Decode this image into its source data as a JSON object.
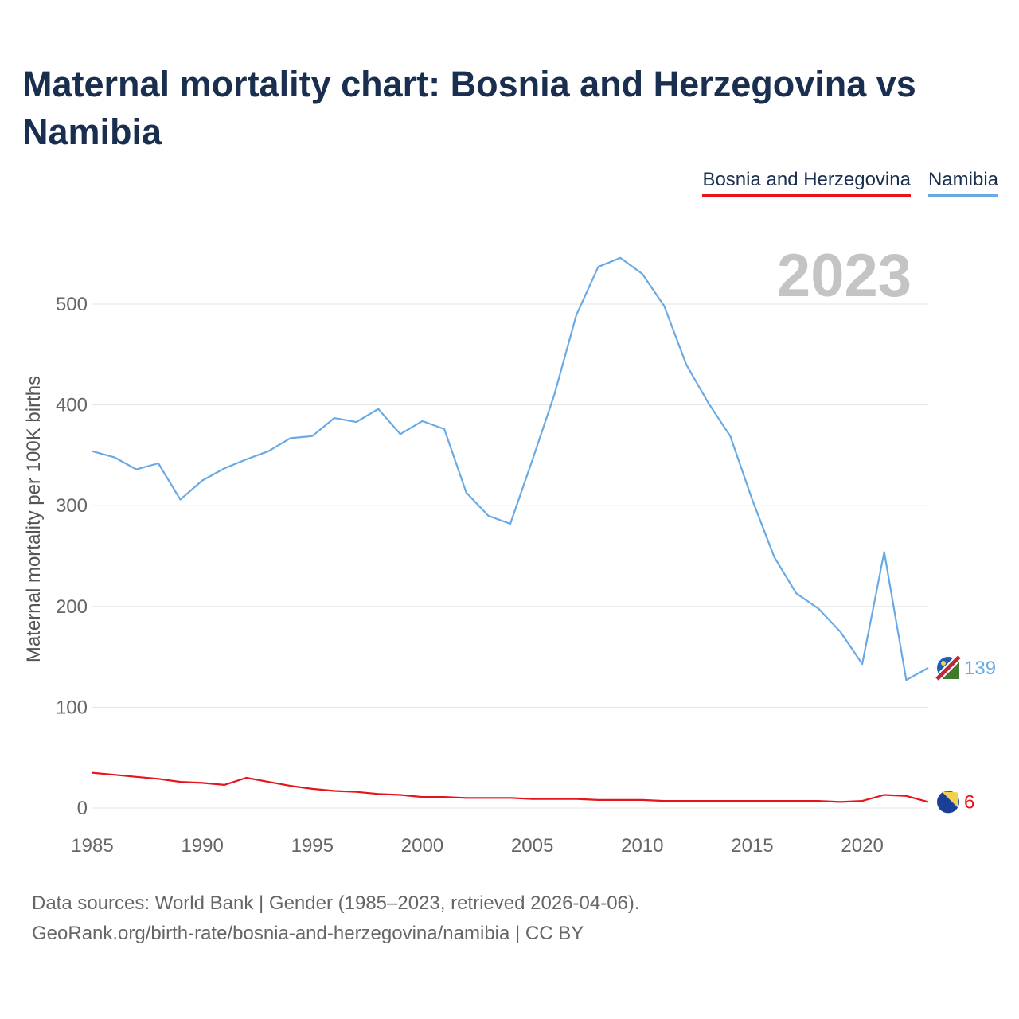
{
  "title": "Maternal mortality chart: Bosnia and Herzegovina vs Namibia",
  "legend": [
    {
      "label": "Bosnia and Herzegovina",
      "color": "#e8141b"
    },
    {
      "label": "Namibia",
      "color": "#6aaae4"
    }
  ],
  "year_watermark": "2023",
  "footer": {
    "line1": "Data sources: World Bank | Gender (1985–2023, retrieved 2026-04-06).",
    "line2": "GeoRank.org/birth-rate/bosnia-and-herzegovina/namibia | CC BY"
  },
  "chart_data": {
    "type": "line",
    "title": "Maternal mortality chart: Bosnia and Herzegovina vs Namibia",
    "xlabel": "",
    "ylabel": "Maternal mortality per 100K births",
    "xlim": [
      1985,
      2023
    ],
    "ylim": [
      0,
      560
    ],
    "x_ticks": [
      1985,
      1990,
      1995,
      2000,
      2005,
      2010,
      2015,
      2020
    ],
    "y_ticks": [
      0,
      100,
      200,
      300,
      400,
      500
    ],
    "grid": true,
    "x": [
      1985,
      1986,
      1987,
      1988,
      1989,
      1990,
      1991,
      1992,
      1993,
      1994,
      1995,
      1996,
      1997,
      1998,
      1999,
      2000,
      2001,
      2002,
      2003,
      2004,
      2005,
      2006,
      2007,
      2008,
      2009,
      2010,
      2011,
      2012,
      2013,
      2014,
      2015,
      2016,
      2017,
      2018,
      2019,
      2020,
      2021,
      2022,
      2023
    ],
    "series": [
      {
        "name": "Bosnia and Herzegovina",
        "color": "#e8141b",
        "end_label": "6",
        "flag_icon": "bosnia-flag-icon",
        "values": [
          35,
          33,
          31,
          29,
          26,
          25,
          23,
          30,
          26,
          22,
          19,
          17,
          16,
          14,
          13,
          11,
          11,
          10,
          10,
          10,
          9,
          9,
          9,
          8,
          8,
          8,
          7,
          7,
          7,
          7,
          7,
          7,
          7,
          7,
          6,
          7,
          13,
          12,
          6
        ]
      },
      {
        "name": "Namibia",
        "color": "#6aaae4",
        "end_label": "139",
        "flag_icon": "namibia-flag-icon",
        "values": [
          354,
          348,
          336,
          342,
          306,
          325,
          337,
          346,
          354,
          367,
          369,
          387,
          383,
          396,
          371,
          384,
          376,
          313,
          290,
          282,
          345,
          410,
          489,
          537,
          546,
          530,
          498,
          440,
          402,
          369,
          306,
          249,
          213,
          198,
          175,
          143,
          254,
          127,
          139
        ]
      }
    ]
  }
}
